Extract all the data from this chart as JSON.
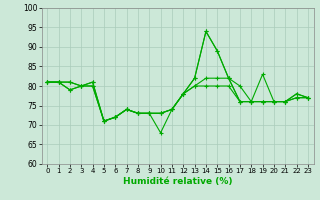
{
  "xlabel": "Humidité relative (%)",
  "xlim": [
    -0.5,
    23.5
  ],
  "ylim": [
    60,
    100
  ],
  "yticks": [
    60,
    65,
    70,
    75,
    80,
    85,
    90,
    95,
    100
  ],
  "xticks": [
    0,
    1,
    2,
    3,
    4,
    5,
    6,
    7,
    8,
    9,
    10,
    11,
    12,
    13,
    14,
    15,
    16,
    17,
    18,
    19,
    20,
    21,
    22,
    23
  ],
  "background_color": "#cce8d8",
  "grid_color": "#aaccbb",
  "line_color": "#00aa00",
  "lines": [
    [
      81,
      81,
      81,
      80,
      81,
      71,
      72,
      74,
      73,
      73,
      73,
      74,
      78,
      82,
      94,
      89,
      82,
      76,
      76,
      76,
      76,
      76,
      78,
      77
    ],
    [
      81,
      81,
      81,
      80,
      81,
      71,
      72,
      74,
      73,
      73,
      68,
      74,
      78,
      82,
      94,
      89,
      82,
      80,
      76,
      83,
      76,
      76,
      78,
      77
    ],
    [
      81,
      81,
      79,
      80,
      80,
      71,
      72,
      74,
      73,
      73,
      73,
      74,
      78,
      80,
      82,
      82,
      82,
      76,
      76,
      76,
      76,
      76,
      77,
      77
    ],
    [
      81,
      81,
      79,
      80,
      80,
      71,
      72,
      74,
      73,
      73,
      73,
      74,
      78,
      80,
      80,
      80,
      80,
      76,
      76,
      76,
      76,
      76,
      77,
      77
    ]
  ]
}
